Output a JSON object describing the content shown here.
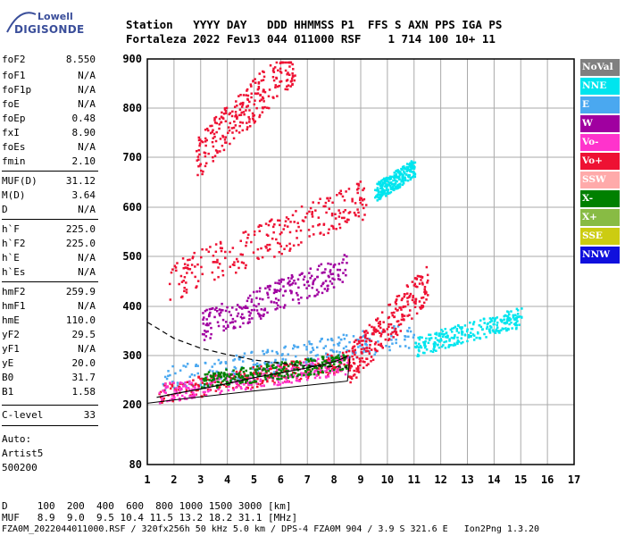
{
  "logo": {
    "top": "Lowell",
    "bottom": "DIGISONDE"
  },
  "header": {
    "line1": "Station   YYYY DAY   DDD HHMMSS P1  FFS S AXN PPS IGA PS",
    "line2": "Fortaleza 2022 Fev13 044 011000 RSF    1 714 100 10+ 11"
  },
  "params": [
    {
      "k": "foF2",
      "v": "8.550"
    },
    {
      "k": "foF1",
      "v": "N/A"
    },
    {
      "k": "foF1p",
      "v": "N/A"
    },
    {
      "k": "foE",
      "v": "N/A"
    },
    {
      "k": "foEp",
      "v": "0.48"
    },
    {
      "k": "fxI",
      "v": "8.90"
    },
    {
      "k": "foEs",
      "v": "N/A"
    },
    {
      "k": "fmin",
      "v": "2.10"
    },
    {
      "k": "MUF(D)",
      "v": "31.12"
    },
    {
      "k": "M(D)",
      "v": "3.64"
    },
    {
      "k": "D",
      "v": "N/A"
    },
    {
      "k": "h`F",
      "v": "225.0"
    },
    {
      "k": "h`F2",
      "v": "225.0"
    },
    {
      "k": "h`E",
      "v": "N/A"
    },
    {
      "k": "h`Es",
      "v": "N/A"
    },
    {
      "k": "hmF2",
      "v": "259.9"
    },
    {
      "k": "hmF1",
      "v": "N/A"
    },
    {
      "k": "hmE",
      "v": "110.0"
    },
    {
      "k": "yF2",
      "v": "29.5"
    },
    {
      "k": "yF1",
      "v": "N/A"
    },
    {
      "k": "yE",
      "v": "20.0"
    },
    {
      "k": "B0",
      "v": "31.7"
    },
    {
      "k": "B1",
      "v": "1.58"
    },
    {
      "k": "C-level",
      "v": "33"
    }
  ],
  "auto": {
    "l1": "Auto:",
    "l2": "Artist5",
    "l3": "500200"
  },
  "legend": [
    {
      "label": "NoVal",
      "color": "#808080"
    },
    {
      "label": "NNE",
      "color": "#00e5ee"
    },
    {
      "label": "E",
      "color": "#4aa8f0"
    },
    {
      "label": "W",
      "color": "#a000a0"
    },
    {
      "label": "Vo-",
      "color": "#ff33cc"
    },
    {
      "label": "Vo+",
      "color": "#ee1133"
    },
    {
      "label": "SSW",
      "color": "#ffaaaa"
    },
    {
      "label": "X-",
      "color": "#008000"
    },
    {
      "label": "X+",
      "color": "#88bb44"
    },
    {
      "label": "SSE",
      "color": "#cccc11"
    },
    {
      "label": "NNW",
      "color": "#1010dd"
    }
  ],
  "footer": {
    "line1": "D     100  200  400  600  800 1000 1500 3000 [km]",
    "line2": "MUF   8.9  9.0  9.5 10.4 11.5 13.2 18.2 31.1 [MHz]",
    "line3": "FZA0M_2022044011000.RSF / 320fx256h 50 kHz 5.0 km / DPS-4 FZA0M 904 / 3.9 S 321.6 E   Ion2Png 1.3.20"
  },
  "chart_data": {
    "type": "scatter",
    "xlim": [
      1,
      17
    ],
    "ylim": [
      80,
      900
    ],
    "x_ticks": [
      1,
      2,
      3,
      4,
      5,
      6,
      7,
      8,
      9,
      10,
      11,
      12,
      13,
      14,
      15,
      16,
      17
    ],
    "y_ticks": [
      80,
      200,
      300,
      400,
      500,
      600,
      700,
      800,
      900
    ],
    "grid": true,
    "trace_profile": [
      [
        1.35,
        215
      ],
      [
        2,
        222
      ],
      [
        3,
        232
      ],
      [
        4,
        243
      ],
      [
        5,
        255
      ],
      [
        6,
        265
      ],
      [
        7,
        275
      ],
      [
        8,
        287
      ],
      [
        8.5,
        298
      ]
    ],
    "trace_dashed": [
      [
        1.0,
        368
      ],
      [
        2,
        335
      ],
      [
        3,
        315
      ],
      [
        4,
        302
      ],
      [
        5,
        291
      ],
      [
        6,
        284
      ],
      [
        7,
        279
      ],
      [
        8,
        277
      ],
      [
        8.5,
        276
      ]
    ],
    "echo_clusters": [
      {
        "series": "E",
        "x": [
          1.5,
          11.0
        ],
        "y": [
          250,
          345
        ]
      },
      {
        "series": "Vo+",
        "x": [
          1.4,
          8.5
        ],
        "y": [
          225,
          290
        ]
      },
      {
        "series": "Vo-",
        "x": [
          1.4,
          8.5
        ],
        "y": [
          225,
          285
        ]
      },
      {
        "series": "X-",
        "x": [
          3.0,
          8.5
        ],
        "y": [
          250,
          290
        ]
      },
      {
        "series": "Vo+",
        "x": [
          1.8,
          9.2
        ],
        "y": [
          450,
          620
        ]
      },
      {
        "series": "Vo+",
        "x": [
          2.8,
          6.5
        ],
        "y": [
          700,
          900
        ]
      },
      {
        "series": "NNE",
        "x": [
          9.5,
          11.0
        ],
        "y": [
          630,
          680
        ]
      },
      {
        "series": "Vo+",
        "x": [
          8.5,
          11.5
        ],
        "y": [
          280,
          450
        ]
      },
      {
        "series": "NNE",
        "x": [
          11.0,
          15.0
        ],
        "y": [
          320,
          380
        ]
      },
      {
        "series": "W",
        "x": [
          3.0,
          8.5
        ],
        "y": [
          360,
          480
        ]
      }
    ]
  }
}
